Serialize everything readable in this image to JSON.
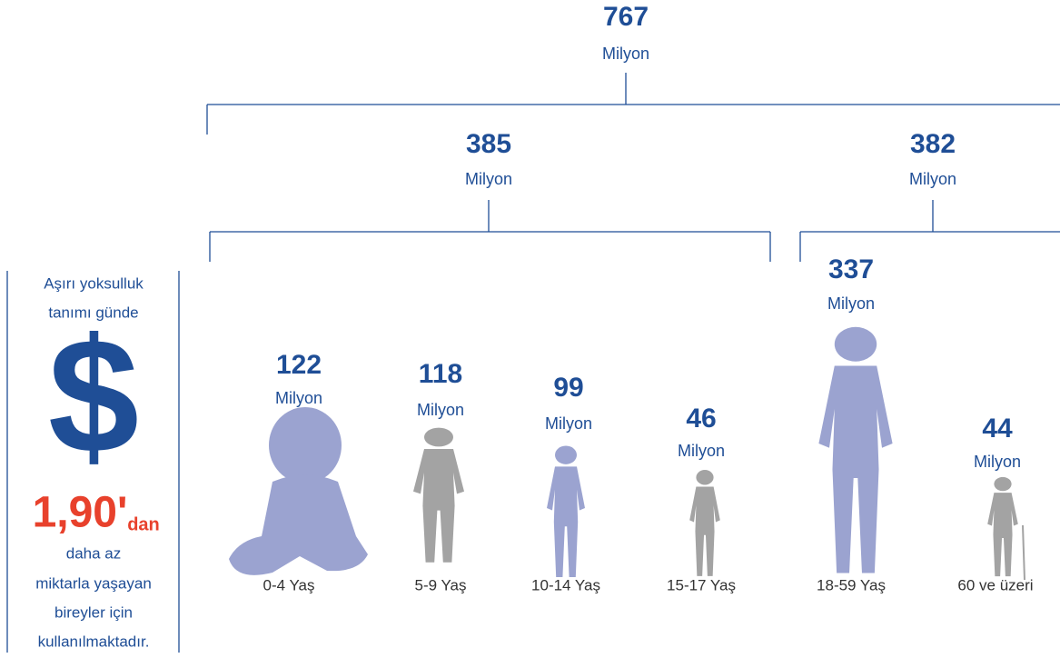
{
  "total": {
    "value": "767",
    "unit": "Milyon"
  },
  "branches": [
    {
      "value": "385",
      "unit": "Milyon"
    },
    {
      "value": "382",
      "unit": "Milyon"
    }
  ],
  "groups": [
    {
      "value": "122",
      "unit": "Milyon",
      "label": "0-4 Yaş"
    },
    {
      "value": "118",
      "unit": "Milyon",
      "label": "5-9 Yaş"
    },
    {
      "value": "99",
      "unit": "Milyon",
      "label": "10-14 Yaş"
    },
    {
      "value": "46",
      "unit": "Milyon",
      "label": "15-17 Yaş"
    },
    {
      "value": "337",
      "unit": "Milyon",
      "label": "18-59 Yaş"
    },
    {
      "value": "44",
      "unit": "Milyon",
      "label": "60 ve üzeri"
    }
  ],
  "sidebar": {
    "intro": [
      "Aşırı yoksulluk",
      "tanımı günde"
    ],
    "symbol": "$",
    "amount": "1,90'",
    "suffix": "dan",
    "outro": [
      "daha az",
      "miktarla yaşayan",
      "bireyler için",
      "kullanılmaktadır."
    ]
  }
}
